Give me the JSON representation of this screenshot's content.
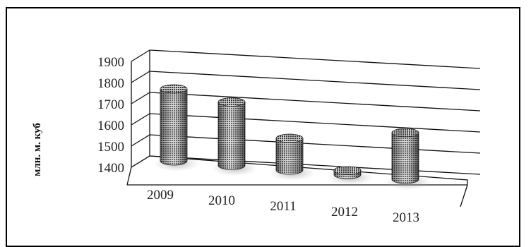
{
  "chart_data": {
    "type": "bar",
    "style": "3d-cylinder",
    "title": "",
    "xlabel": "",
    "ylabel": "млн. м. куб",
    "categories": [
      "2009",
      "2010",
      "2011",
      "2012",
      "2013"
    ],
    "values": [
      1740,
      1700,
      1550,
      1420,
      1620
    ],
    "ylim": [
      1400,
      1900
    ],
    "yticks": [
      "1400",
      "1500",
      "1600",
      "1700",
      "1800",
      "1900"
    ],
    "grid": true,
    "legend": "none",
    "bar_color": "#777777"
  }
}
